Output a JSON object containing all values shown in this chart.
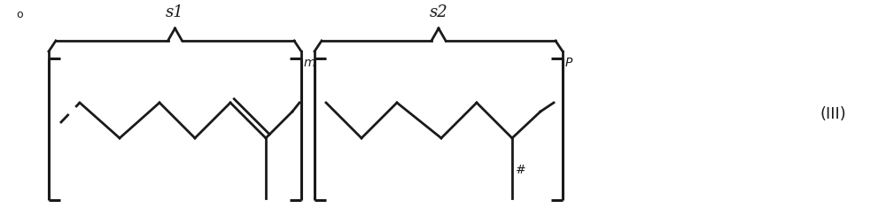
{
  "fig_width": 10.0,
  "fig_height": 2.44,
  "dpi": 100,
  "bg_color": "#ffffff",
  "line_color": "#1a1a1a",
  "line_width": 2.0,
  "label_s1": "s1",
  "label_s2": "s2",
  "label_m": "m",
  "label_p": "P",
  "label_hash": "#",
  "label_III": "(III)",
  "label_dot": "o",
  "font_size_labels": 13,
  "font_size_III": 13,
  "font_size_dot": 9
}
